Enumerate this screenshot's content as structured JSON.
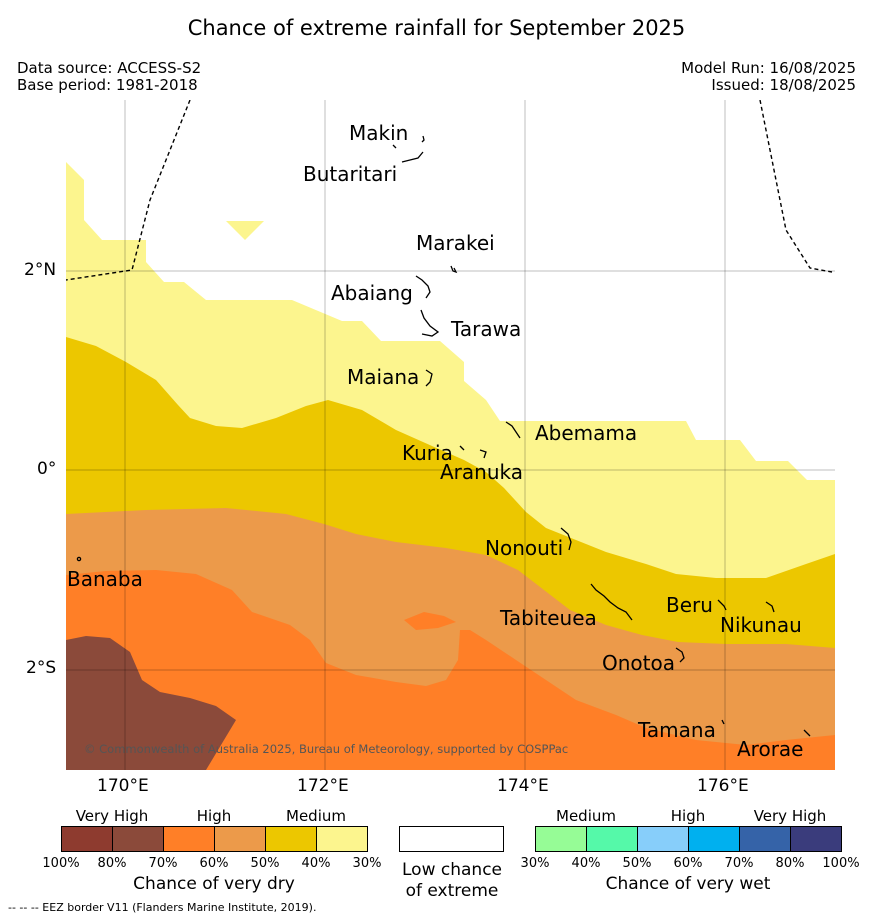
{
  "title": "Chance of extreme rainfall for September 2025",
  "data_source": "Data source: ACCESS-S2",
  "base_period": "Base period: 1981-2018",
  "model_run": "Model Run: 16/08/2025",
  "issued": "Issued: 18/08/2025",
  "copyright": "© Commonwealth of Australia 2025, Bureau of Meteorology, supported by COSPPac",
  "lat_labels": {
    "n2": "2°N",
    "eq": "0°",
    "s2": "2°S"
  },
  "lon_labels": {
    "e170": "170°E",
    "e172": "172°E",
    "e174": "174°E",
    "e176": "176°E"
  },
  "islands": {
    "makin": "Makin",
    "butaritari": "Butaritari",
    "marakei": "Marakei",
    "abaiang": "Abaiang",
    "tarawa": "Tarawa",
    "maiana": "Maiana",
    "abemama": "Abemama",
    "kuria": "Kuria",
    "aranuka": "Aranuka",
    "nonouti": "Nonouti",
    "banaba": "Banaba",
    "tabiteuea": "Tabiteuea",
    "beru": "Beru",
    "nikunau": "Nikunau",
    "onotoa": "Onotoa",
    "tamana": "Tamana",
    "arorae": "Arorae"
  },
  "legend": {
    "dry": {
      "categories": {
        "very_high": "Very High",
        "high": "High",
        "medium": "Medium"
      },
      "ticks": [
        "100%",
        "80%",
        "70%",
        "60%",
        "50%",
        "40%",
        "30%"
      ],
      "colors": [
        "#8e3b2f",
        "#8b4a3a",
        "#ff7f27",
        "#ec9a4a",
        "#ecc700",
        "#fcf58e"
      ],
      "caption": "Chance of very dry"
    },
    "low": {
      "line1": "Low chance",
      "line2": "of extreme",
      "color": "#ffffff"
    },
    "wet": {
      "categories": {
        "medium": "Medium",
        "high": "High",
        "very_high": "Very High"
      },
      "ticks": [
        "30%",
        "40%",
        "50%",
        "60%",
        "70%",
        "80%",
        "100%"
      ],
      "colors": [
        "#96fc96",
        "#55f9a9",
        "#87cefa",
        "#00b0ef",
        "#3563a8",
        "#3a3c7c"
      ],
      "caption": "Chance of very wet"
    }
  },
  "footer": "--  --  -- EEZ border V11 (Flanders Marine Institute, 2019)."
}
